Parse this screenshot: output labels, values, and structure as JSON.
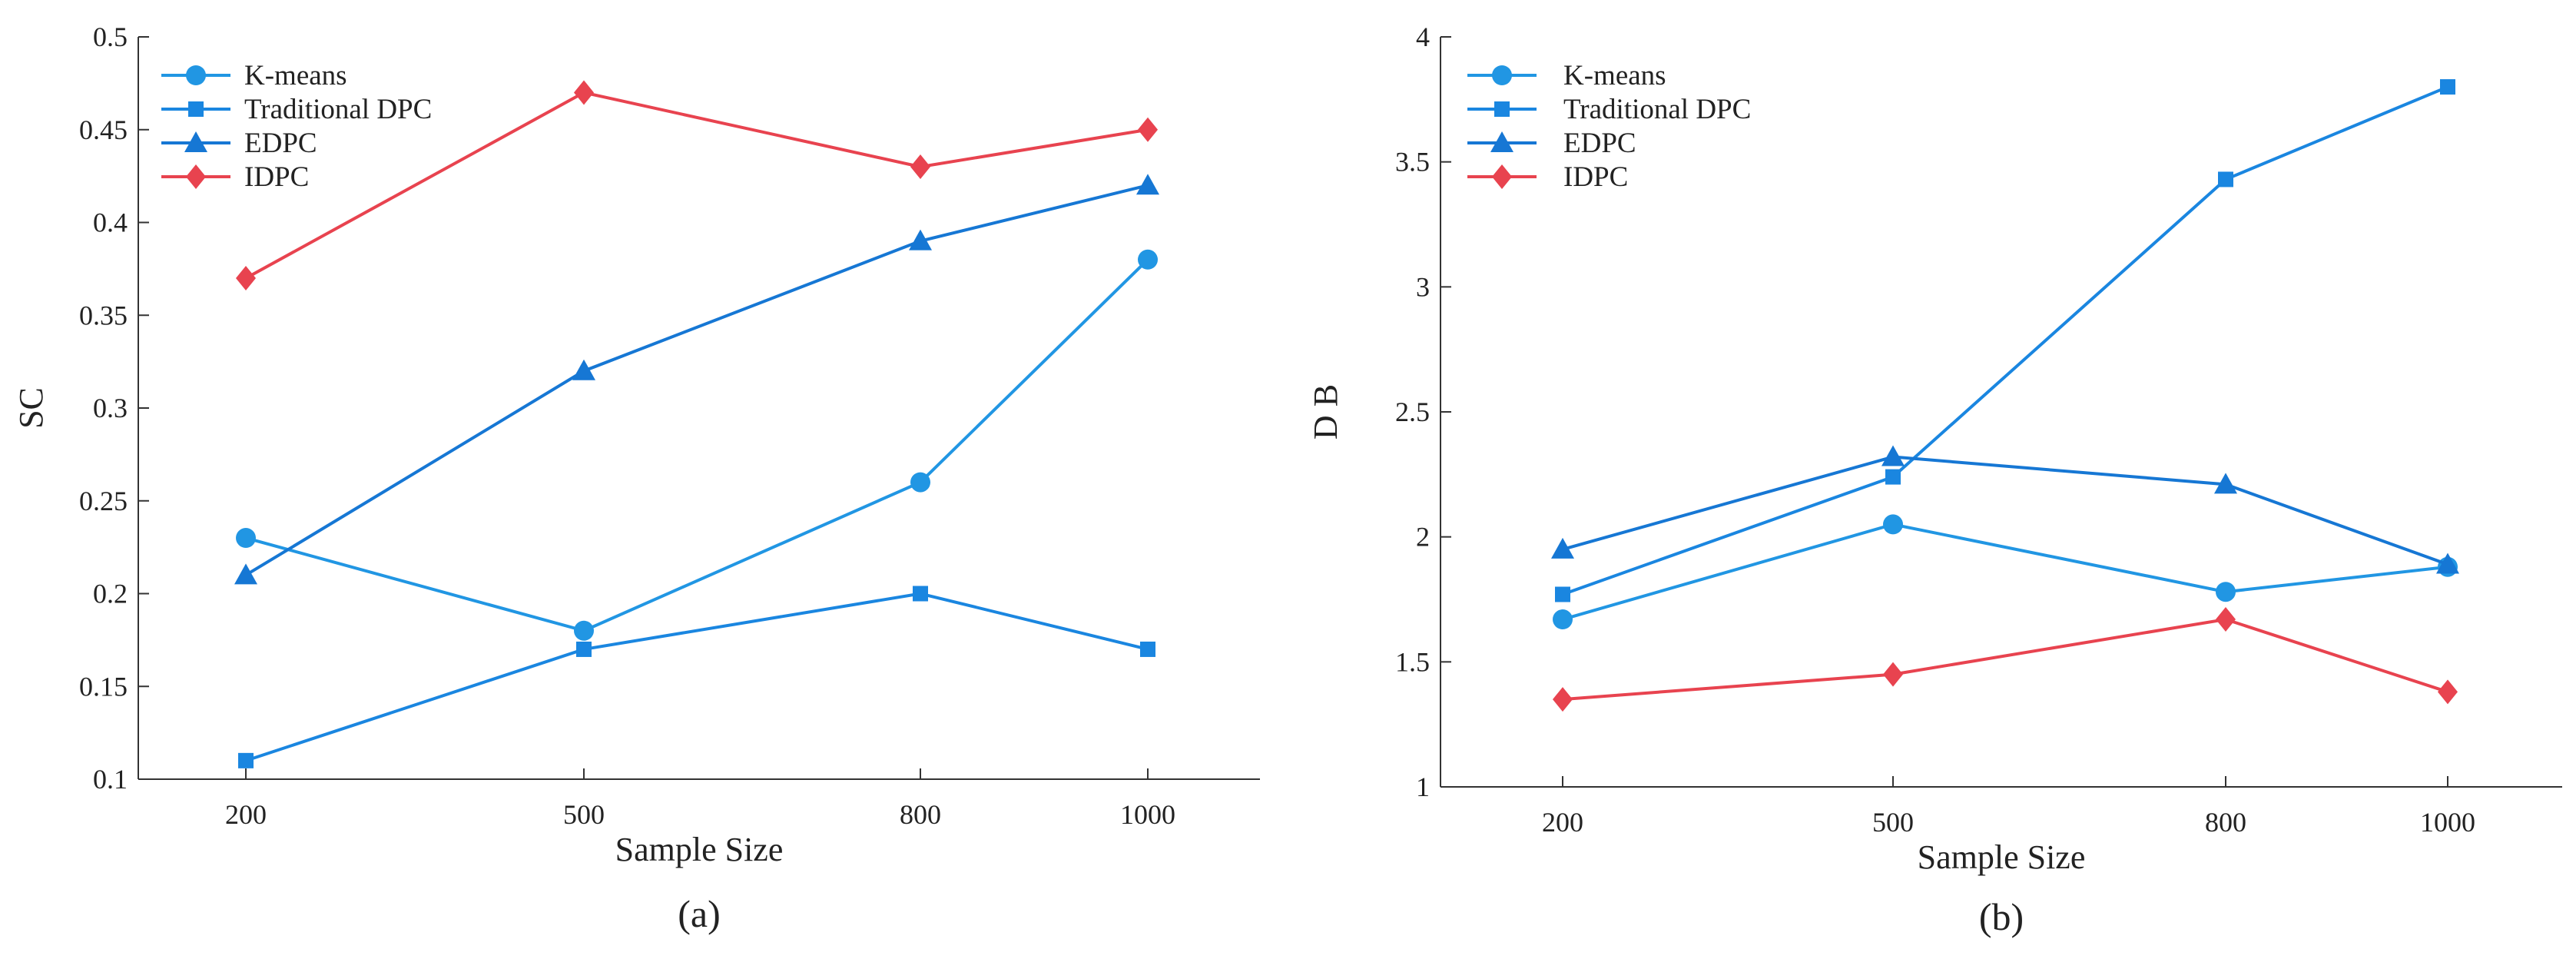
{
  "colors": {
    "kmeans": "#2196E3",
    "traditional_dpc": "#1A86E0",
    "edpc": "#1677D4",
    "idpc": "#E8434F"
  },
  "chart_data": [
    {
      "type": "line",
      "panel_label": "(a)",
      "xlabel": "Sample Size",
      "ylabel": "SC",
      "x": [
        200,
        500,
        800,
        1000
      ],
      "x_tick_labels": [
        "200",
        "500",
        "800",
        "1000"
      ],
      "ylim": [
        0.1,
        0.5
      ],
      "y_ticks": [
        0.1,
        0.15,
        0.2,
        0.25,
        0.3,
        0.35,
        0.4,
        0.45,
        0.5
      ],
      "y_tick_labels": [
        "0.1",
        "0.15",
        "0.2",
        "0.25",
        "0.3",
        "0.35",
        "0.4",
        "0.45",
        "0.5"
      ],
      "legend_position": "top-left",
      "series": [
        {
          "name": "K-means",
          "marker": "circle",
          "color_key": "kmeans",
          "values": [
            0.23,
            0.18,
            0.26,
            0.38
          ]
        },
        {
          "name": "Traditional DPC",
          "marker": "square",
          "color_key": "traditional_dpc",
          "values": [
            0.11,
            0.17,
            0.2,
            0.17
          ]
        },
        {
          "name": "EDPC",
          "marker": "triangle",
          "color_key": "edpc",
          "values": [
            0.21,
            0.32,
            0.39,
            0.42
          ]
        },
        {
          "name": "IDPC",
          "marker": "diamond",
          "color_key": "idpc",
          "values": [
            0.37,
            0.47,
            0.43,
            0.45
          ]
        }
      ]
    },
    {
      "type": "line",
      "panel_label": "(b)",
      "xlabel": "Sample Size",
      "ylabel": "D B",
      "x": [
        200,
        500,
        800,
        1000
      ],
      "x_tick_labels": [
        "200",
        "500",
        "800",
        "1000"
      ],
      "ylim": [
        1,
        4
      ],
      "y_ticks": [
        1,
        1.5,
        2,
        2.5,
        3,
        3.5,
        4
      ],
      "y_tick_labels": [
        "1",
        "1.5",
        "2",
        "2.5",
        "3",
        "3.5",
        "4"
      ],
      "legend_position": "top-left",
      "series": [
        {
          "name": "K-means",
          "marker": "circle",
          "color_key": "kmeans",
          "values": [
            1.67,
            2.05,
            1.78,
            1.88
          ]
        },
        {
          "name": "Traditional DPC",
          "marker": "square",
          "color_key": "traditional_dpc",
          "values": [
            1.77,
            2.24,
            3.43,
            3.8
          ]
        },
        {
          "name": "EDPC",
          "marker": "triangle",
          "color_key": "edpc",
          "values": [
            1.95,
            2.32,
            2.21,
            1.89
          ]
        },
        {
          "name": "IDPC",
          "marker": "diamond",
          "color_key": "idpc",
          "values": [
            1.35,
            1.45,
            1.67,
            1.38
          ]
        }
      ]
    }
  ]
}
